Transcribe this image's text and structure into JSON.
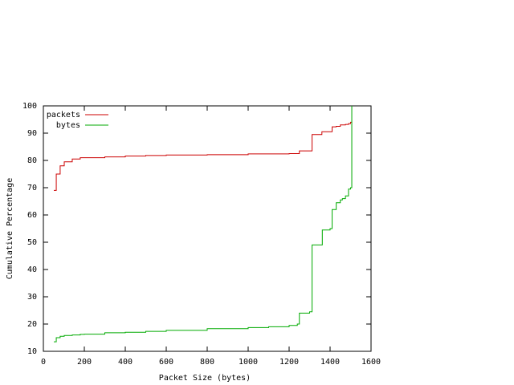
{
  "chart_data": {
    "type": "line",
    "line_style": "steps",
    "x_label": "Packet Size (bytes)",
    "y_label": "Cumulative Percentage",
    "x": [
      51,
      63,
      82,
      102,
      141,
      180,
      200,
      300,
      400,
      500,
      600,
      800,
      1000,
      1100,
      1200,
      1240,
      1250,
      1300,
      1310,
      1312,
      1360,
      1362,
      1400,
      1410,
      1430,
      1450,
      1460,
      1475,
      1490,
      1500,
      1506
    ],
    "series": [
      {
        "name": "packets",
        "color": "#cc0000",
        "values": [
          69,
          75,
          78,
          79.5,
          80.5,
          81,
          81,
          81.3,
          81.6,
          81.8,
          82,
          82.1,
          82.4,
          82.4,
          82.5,
          82.5,
          83.5,
          83.5,
          83.5,
          89.5,
          90.5,
          90.5,
          90.5,
          92.3,
          92.5,
          93,
          93,
          93.2,
          93.5,
          94,
          94
        ]
      },
      {
        "name": "bytes",
        "color": "#00aa00",
        "values": [
          13.5,
          15,
          15.5,
          15.8,
          16,
          16.2,
          16.3,
          16.8,
          17,
          17.3,
          17.7,
          18.3,
          18.7,
          19,
          19.5,
          20,
          24,
          24.5,
          24.5,
          49,
          49,
          54.5,
          55,
          62,
          64.5,
          65.5,
          66,
          67,
          69.5,
          70,
          100
        ]
      }
    ],
    "xlim": [
      0,
      1600
    ],
    "xticks": [
      0,
      200,
      400,
      600,
      800,
      1000,
      1200,
      1400,
      1600
    ],
    "ylim": [
      10,
      100
    ],
    "yticks": [
      10,
      20,
      30,
      40,
      50,
      60,
      70,
      80,
      90,
      100
    ],
    "legend": "top-left",
    "grid": false
  }
}
